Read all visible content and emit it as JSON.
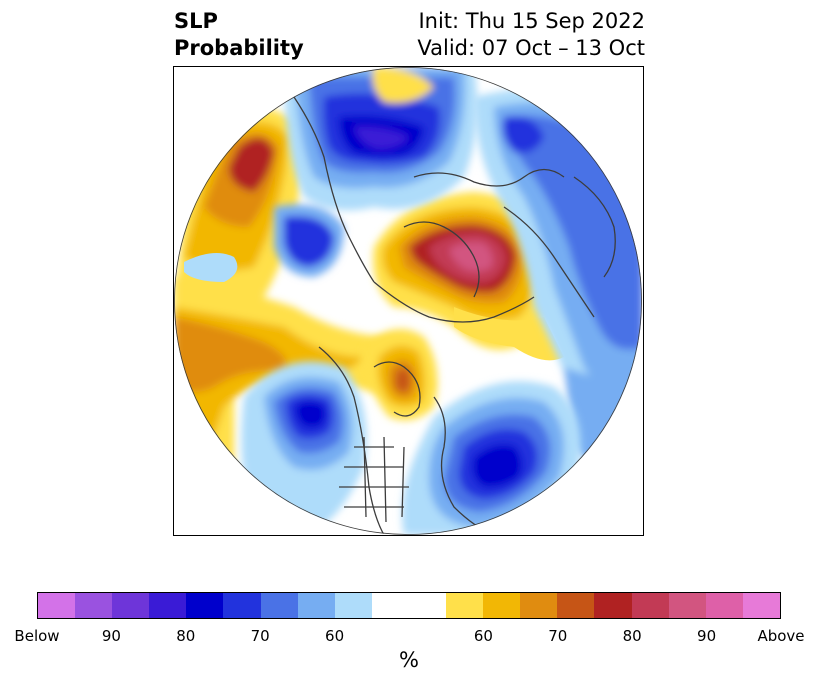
{
  "title": {
    "left_line1": "SLP",
    "left_line2": "Probability",
    "right_line1": "Init: Thu 15 Sep 2022",
    "right_line2": "Valid: 07 Oct – 13 Oct"
  },
  "map": {
    "projection": "north polar stereographic",
    "variable": "SLP tercile probability",
    "regions": [
      {
        "name": "arctic-ocean-high",
        "category": "above",
        "peak_percent": 90
      },
      {
        "name": "north-pacific-high",
        "category": "above",
        "peak_percent": 80
      },
      {
        "name": "hudson-bay-high",
        "category": "above",
        "peak_percent": 75
      },
      {
        "name": "siberia-low",
        "category": "below",
        "peak_percent": 80
      },
      {
        "name": "scandinavia-low",
        "category": "below",
        "peak_percent": 70
      },
      {
        "name": "north-atlantic-low",
        "category": "below",
        "peak_percent": 80
      },
      {
        "name": "gulf-of-alaska-low",
        "category": "below",
        "peak_percent": 75
      },
      {
        "name": "east-asia-low",
        "category": "below",
        "peak_percent": 75
      }
    ]
  },
  "colorbar": {
    "unit": "%",
    "colors": [
      "#d372e8",
      "#9a52e0",
      "#6e35d9",
      "#3a1bd6",
      "#0000cc",
      "#2233dd",
      "#4a72e6",
      "#76adf2",
      "#aedcfa",
      "#ffffff",
      "#ffe04a",
      "#f2b705",
      "#e08c10",
      "#c65516",
      "#b02222",
      "#c23a55",
      "#d25580",
      "#de60a8",
      "#e77ad8"
    ],
    "tick_labels": [
      "Below",
      "90",
      "80",
      "70",
      "60",
      "60",
      "70",
      "80",
      "90",
      "Above"
    ]
  }
}
